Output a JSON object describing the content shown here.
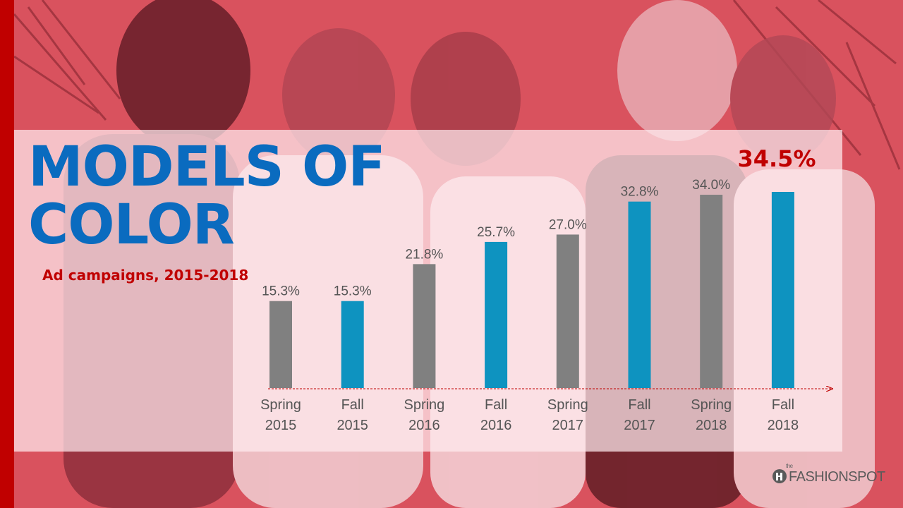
{
  "slide": {
    "title": "MODELS OF COLOR",
    "subtitle": "Ad campaigns, 2015-2018",
    "highlight_value": "34.5%",
    "logo_small": "the",
    "logo_text": "FASHIONSPOT",
    "colors": {
      "accent_red": "#c00000",
      "title_blue": "#0a6bbf",
      "bar_blue": "#0e93c0",
      "bar_gray": "#808080"
    }
  },
  "chart_data": {
    "type": "bar",
    "categories": [
      [
        "Spring",
        "2015"
      ],
      [
        "Fall",
        "2015"
      ],
      [
        "Spring",
        "2016"
      ],
      [
        "Fall",
        "2016"
      ],
      [
        "Spring",
        "2017"
      ],
      [
        "Fall",
        "2017"
      ],
      [
        "Spring",
        "2018"
      ],
      [
        "Fall",
        "2018"
      ]
    ],
    "values": [
      15.3,
      15.3,
      21.8,
      25.7,
      27.0,
      32.8,
      34.0,
      34.5
    ],
    "data_labels": [
      "15.3%",
      "15.3%",
      "21.8%",
      "25.7%",
      "27.0%",
      "32.8%",
      "34.0%",
      ""
    ],
    "bar_colors": [
      "gray",
      "blue",
      "gray",
      "blue",
      "gray",
      "blue",
      "gray",
      "blue"
    ],
    "ylim": [
      0,
      34.5
    ],
    "xlabel": "",
    "ylabel": "",
    "grid": false
  }
}
